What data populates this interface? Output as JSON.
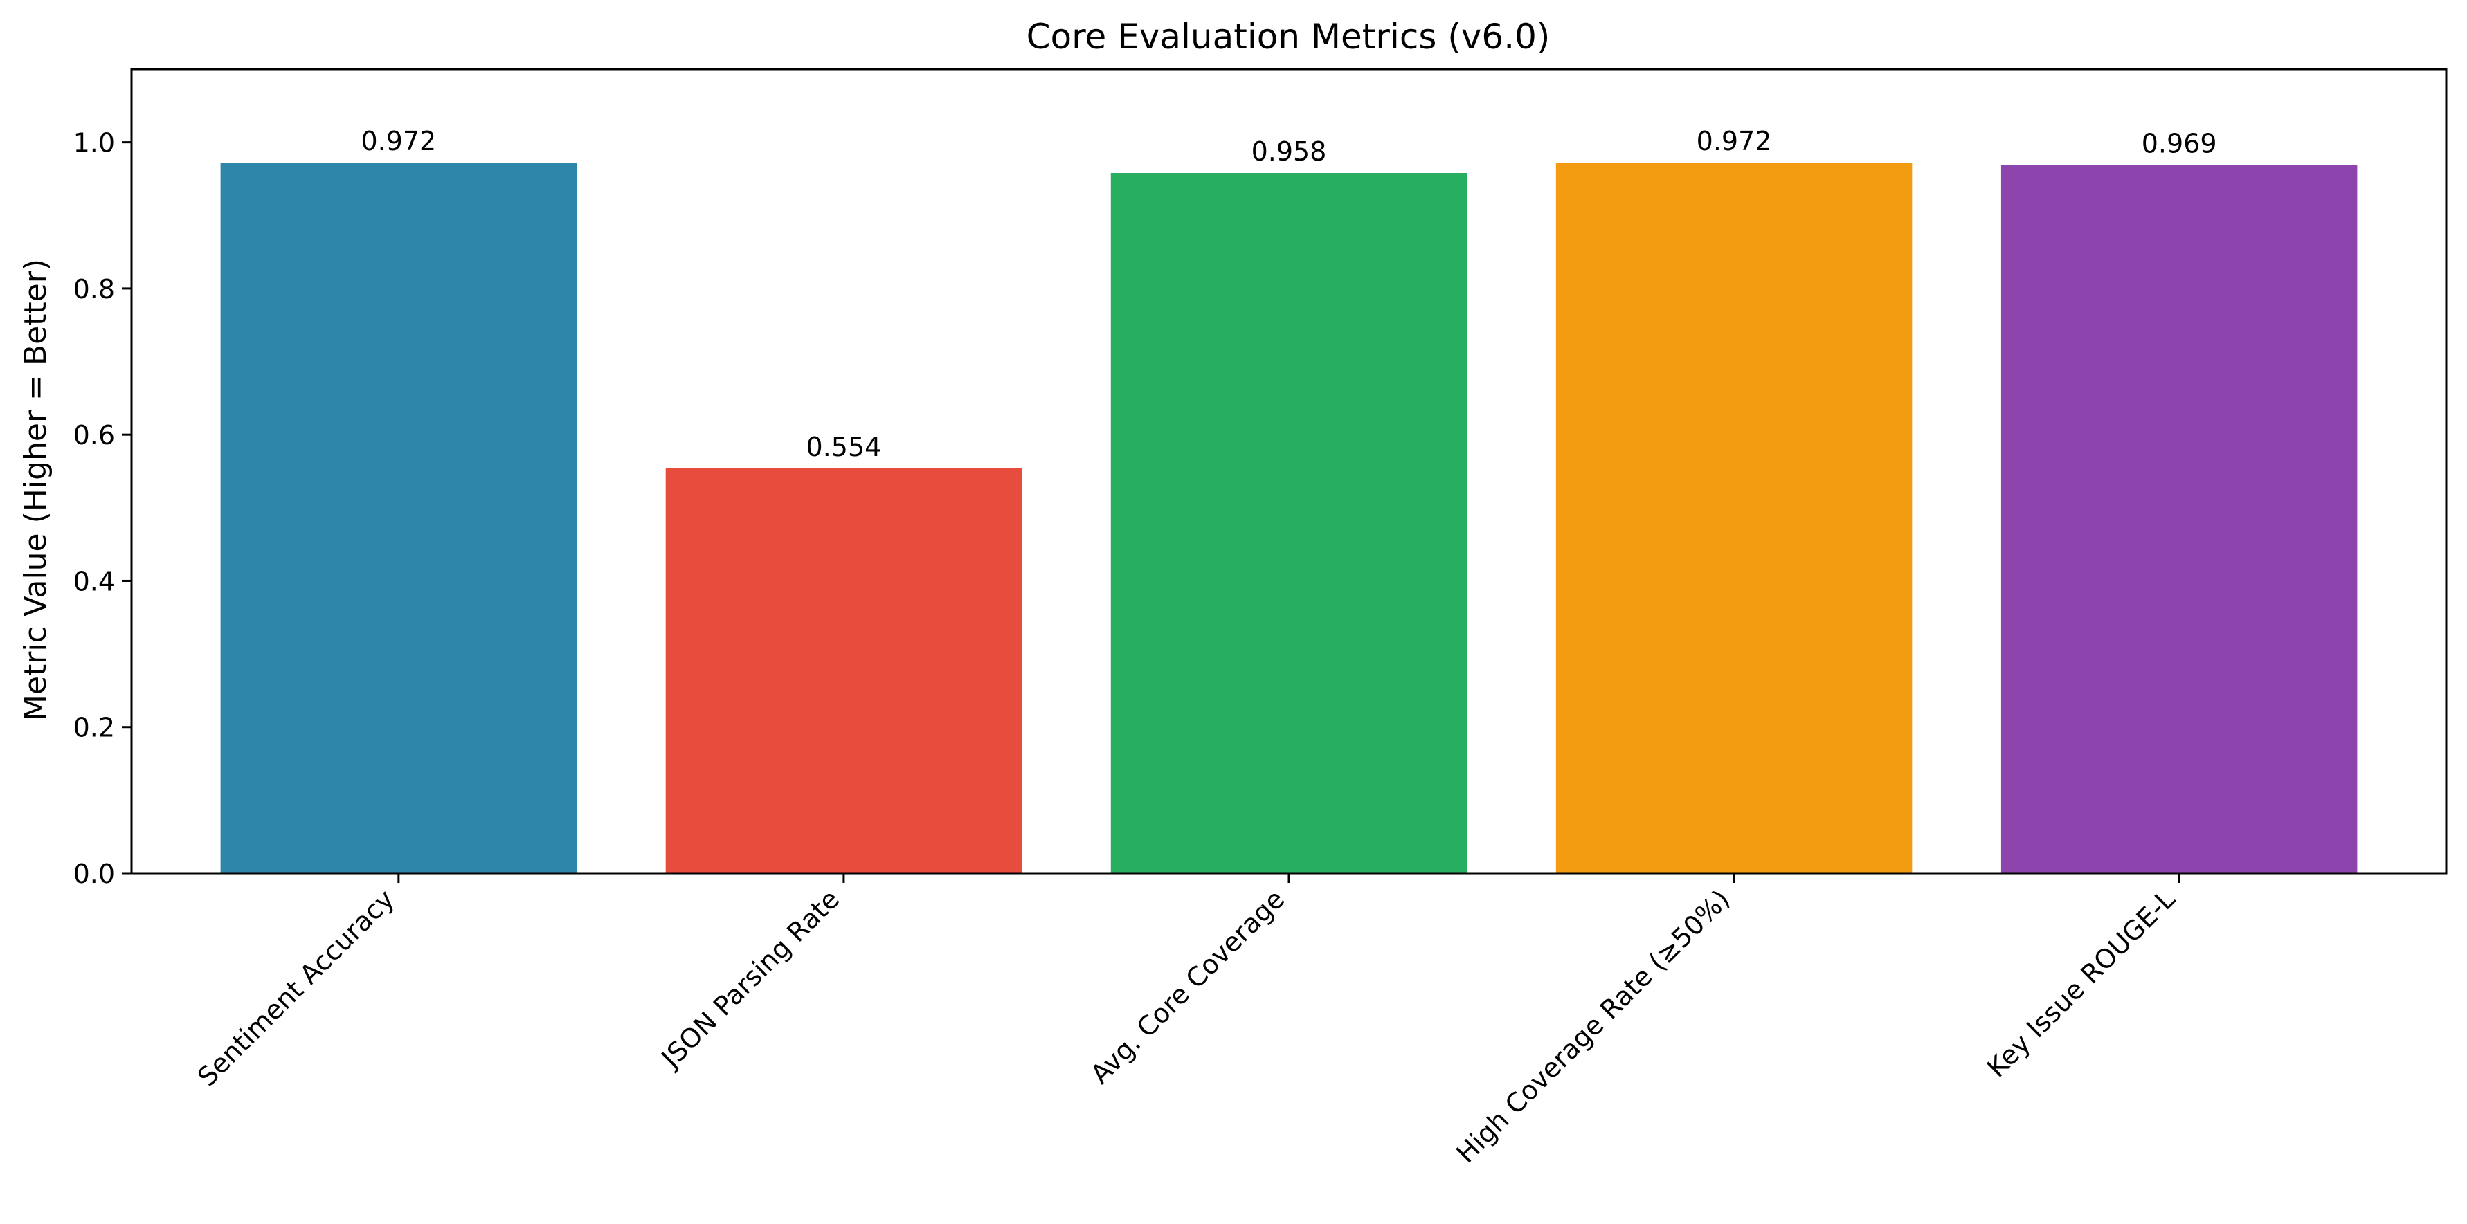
{
  "chart_data": {
    "type": "bar",
    "title": "Core Evaluation Metrics (v6.0)",
    "xlabel": "",
    "ylabel": "Metric Value (Higher = Better)",
    "ylim": [
      0,
      1.1
    ],
    "yticks": [
      0.0,
      0.2,
      0.4,
      0.6,
      0.8,
      1.0
    ],
    "ytick_labels": [
      "0.0",
      "0.2",
      "0.4",
      "0.6",
      "0.8",
      "1.0"
    ],
    "grid": false,
    "legend": "none",
    "categories": [
      "Sentiment Accuracy",
      "JSON Parsing Rate",
      "Avg. Core Coverage",
      "High Coverage Rate (≥50%)",
      "Key Issue ROUGE-L"
    ],
    "values": [
      0.972,
      0.554,
      0.958,
      0.972,
      0.969
    ],
    "value_labels": [
      "0.972",
      "0.554",
      "0.958",
      "0.972",
      "0.969"
    ],
    "colors": [
      "#2e86ab",
      "#e74c3c",
      "#27ae60",
      "#f39c12",
      "#8e44ad"
    ]
  }
}
